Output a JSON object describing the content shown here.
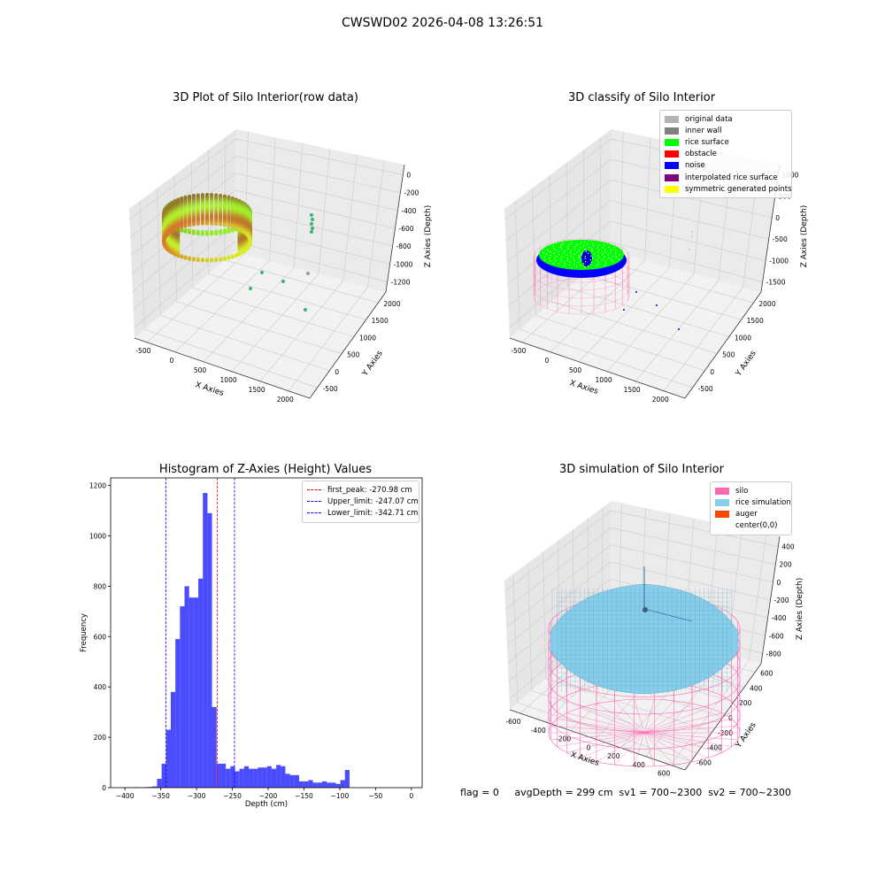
{
  "suptitle": "CWSWD02 2026-04-08 13:26:51",
  "footer": "flag = 0     avgDepth = 299 cm  sv1 = 700~2300  sv2 = 700~2300",
  "chart_data": [
    {
      "type": "scatter",
      "title": "3D Plot of Silo Interior(row data)",
      "xlabel": "X Axies",
      "ylabel": "Y Axies",
      "zlabel": "Z Axies (Depth)",
      "xticks": [
        "-500",
        "0",
        "500",
        "1000",
        "1500",
        "2000"
      ],
      "yticks": [
        "-500",
        "0",
        "500",
        "1000",
        "1500",
        "2000"
      ],
      "zticks": [
        "0",
        "-200",
        "-400",
        "-600",
        "-800",
        "-1000",
        "-1200"
      ],
      "grid": true
    },
    {
      "type": "scatter",
      "title": "3D classify of Silo Interior",
      "xlabel": "X Axies",
      "ylabel": "Y Axies",
      "zlabel": "Z Axies (Depth)",
      "xticks": [
        "-500",
        "0",
        "500",
        "1000",
        "1500",
        "2000"
      ],
      "yticks": [
        "-500",
        "0",
        "500",
        "1000",
        "1500",
        "2000"
      ],
      "zticks": [
        "1000",
        "500",
        "0",
        "-500",
        "-1000",
        "-1500"
      ],
      "legend": [
        {
          "label": "original data",
          "color": "#b3b3b3"
        },
        {
          "label": "inner wall",
          "color": "#808080"
        },
        {
          "label": "rice surface",
          "color": "#00ff00"
        },
        {
          "label": "obstacle",
          "color": "#ff0000"
        },
        {
          "label": "noise",
          "color": "#0000ff"
        },
        {
          "label": "interpolated rice surface",
          "color": "#800080"
        },
        {
          "label": "symmetric generated points",
          "color": "#ffff00"
        }
      ],
      "legend_loc": "top-right",
      "grid": true
    },
    {
      "type": "histogram",
      "title": "Histogram of Z-Axies (Height) Values",
      "xlabel": "Depth (cm)",
      "ylabel": "Frequency",
      "xlim": [
        -420,
        15
      ],
      "ylim": [
        0,
        1230
      ],
      "xticks": [
        -400,
        -350,
        -300,
        -250,
        -200,
        -150,
        -100,
        -50,
        0
      ],
      "yticks": [
        0,
        200,
        400,
        600,
        800,
        1000,
        1200
      ],
      "bin_start": -400,
      "bin_width": 6.4,
      "counts": [
        1,
        1,
        2,
        1,
        2,
        3,
        5,
        35,
        95,
        230,
        380,
        590,
        720,
        800,
        755,
        755,
        830,
        1170,
        1090,
        320,
        95,
        95,
        75,
        85,
        65,
        75,
        85,
        75,
        75,
        80,
        80,
        85,
        75,
        90,
        85,
        55,
        50,
        50,
        25,
        25,
        30,
        20,
        20,
        25,
        20,
        20,
        15,
        30,
        70
      ],
      "bar_color": "#0000ff",
      "lines": [
        {
          "label": "first_peak: -270.98 cm",
          "x": -270.98,
          "color": "#ff0000"
        },
        {
          "label": "Upper_limit: -247.07 cm",
          "x": -247.07,
          "color": "#0000ff"
        },
        {
          "label": "Lower_limit: -342.71 cm",
          "x": -342.71,
          "color": "#0000ff"
        }
      ],
      "legend_loc": "top-right"
    },
    {
      "type": "surface",
      "title": "3D simulation of Silo Interior",
      "xlabel": "X Axies",
      "ylabel": "Y Axies",
      "zlabel": "Z Axies (Depth)",
      "xticks": [
        "-600",
        "-400",
        "-200",
        "0",
        "200",
        "400",
        "600"
      ],
      "yticks": [
        "-600",
        "-400",
        "-200",
        "0",
        "200",
        "400",
        "600"
      ],
      "zticks": [
        "400",
        "200",
        "0",
        "-200",
        "-400",
        "-600",
        "-800"
      ],
      "legend": [
        {
          "label": "silo",
          "color": "#ff69b4"
        },
        {
          "label": "rice simulation",
          "color": "#87ceeb"
        },
        {
          "label": "auger",
          "color": "#ff4500"
        },
        {
          "label": "center(0,0)",
          "color": "#ffffff"
        }
      ],
      "legend_loc": "top-right",
      "grid": true
    }
  ]
}
